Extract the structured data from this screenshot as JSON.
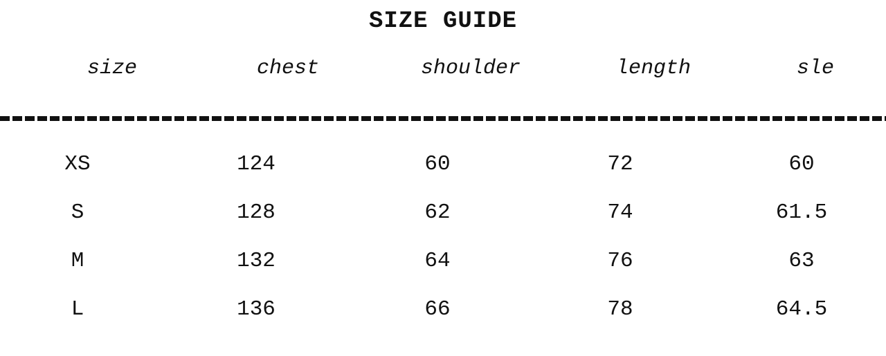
{
  "title": "SIZE GUIDE",
  "headers": [
    "size",
    "chest",
    "shoulder",
    "length",
    "sle"
  ],
  "rows": [
    [
      "XS",
      "124",
      "60",
      "72",
      "60"
    ],
    [
      "S",
      "128",
      "62",
      "74",
      "61.5"
    ],
    [
      "M",
      "132",
      "64",
      "76",
      "63"
    ],
    [
      "L",
      "136",
      "66",
      "78",
      "64.5"
    ]
  ]
}
